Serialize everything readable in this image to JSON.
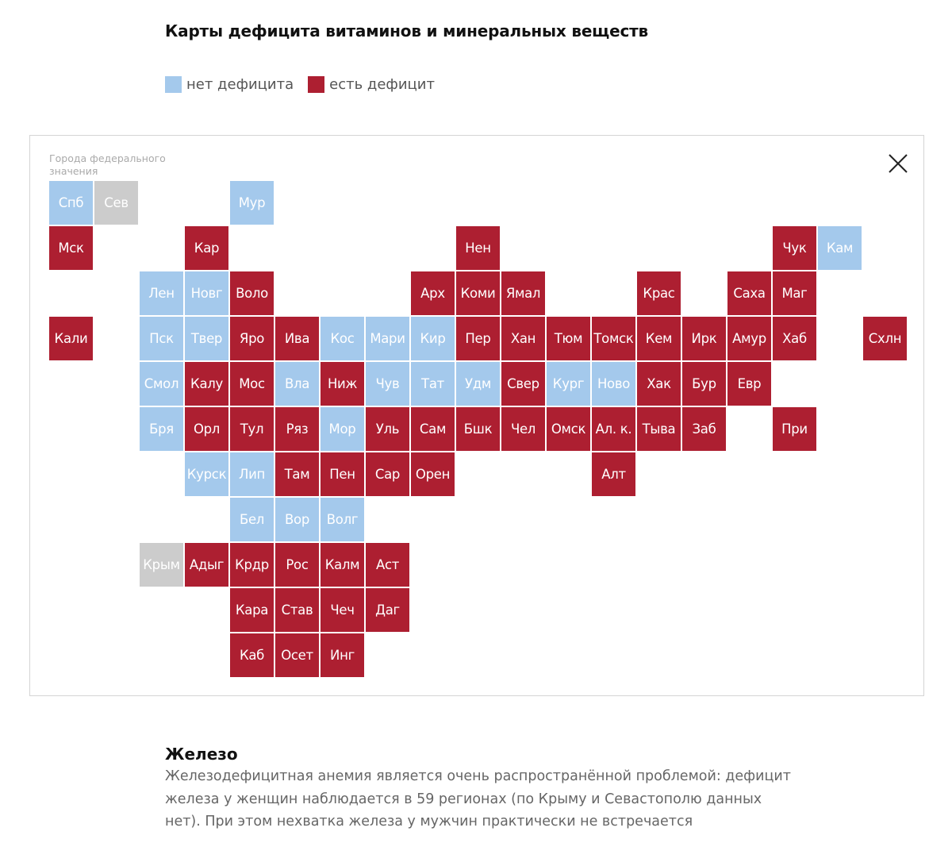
{
  "header": {
    "title": "Карты дефицита витаминов и минеральных веществ"
  },
  "legend": {
    "no_deficit": {
      "label": "нет дефицита",
      "color": "#a4c9ec"
    },
    "deficit": {
      "label": "есть дефицит",
      "color": "#ad1f31"
    }
  },
  "map": {
    "fed_caption": "Города федерального значения",
    "no_data_color": "#cccccc",
    "regions": [
      {
        "label": "Спб",
        "status": "none",
        "row": 0,
        "col": 0
      },
      {
        "label": "Сев",
        "status": "nodata",
        "row": 0,
        "col": 1
      },
      {
        "label": "Мур",
        "status": "none",
        "row": 0,
        "col": 4
      },
      {
        "label": "Мск",
        "status": "deficit",
        "row": 1,
        "col": 0
      },
      {
        "label": "Кар",
        "status": "deficit",
        "row": 1,
        "col": 3
      },
      {
        "label": "Нен",
        "status": "deficit",
        "row": 1,
        "col": 9
      },
      {
        "label": "Чук",
        "status": "deficit",
        "row": 1,
        "col": 16
      },
      {
        "label": "Кам",
        "status": "none",
        "row": 1,
        "col": 17
      },
      {
        "label": "Лен",
        "status": "none",
        "row": 2,
        "col": 2
      },
      {
        "label": "Новг",
        "status": "none",
        "row": 2,
        "col": 3
      },
      {
        "label": "Воло",
        "status": "deficit",
        "row": 2,
        "col": 4
      },
      {
        "label": "Арх",
        "status": "deficit",
        "row": 2,
        "col": 8
      },
      {
        "label": "Коми",
        "status": "deficit",
        "row": 2,
        "col": 9
      },
      {
        "label": "Ямал",
        "status": "deficit",
        "row": 2,
        "col": 10
      },
      {
        "label": "Крас",
        "status": "deficit",
        "row": 2,
        "col": 13
      },
      {
        "label": "Саха",
        "status": "deficit",
        "row": 2,
        "col": 15
      },
      {
        "label": "Маг",
        "status": "deficit",
        "row": 2,
        "col": 16
      },
      {
        "label": "Кали",
        "status": "deficit",
        "row": 3,
        "col": 0
      },
      {
        "label": "Пск",
        "status": "none",
        "row": 3,
        "col": 2
      },
      {
        "label": "Твер",
        "status": "none",
        "row": 3,
        "col": 3
      },
      {
        "label": "Яро",
        "status": "deficit",
        "row": 3,
        "col": 4
      },
      {
        "label": "Ива",
        "status": "deficit",
        "row": 3,
        "col": 5
      },
      {
        "label": "Кос",
        "status": "none",
        "row": 3,
        "col": 6
      },
      {
        "label": "Мари",
        "status": "none",
        "row": 3,
        "col": 7
      },
      {
        "label": "Кир",
        "status": "none",
        "row": 3,
        "col": 8
      },
      {
        "label": "Пер",
        "status": "deficit",
        "row": 3,
        "col": 9
      },
      {
        "label": "Хан",
        "status": "deficit",
        "row": 3,
        "col": 10
      },
      {
        "label": "Тюм",
        "status": "deficit",
        "row": 3,
        "col": 11
      },
      {
        "label": "Томск",
        "status": "deficit",
        "row": 3,
        "col": 12
      },
      {
        "label": "Кем",
        "status": "deficit",
        "row": 3,
        "col": 13
      },
      {
        "label": "Ирк",
        "status": "deficit",
        "row": 3,
        "col": 14
      },
      {
        "label": "Амур",
        "status": "deficit",
        "row": 3,
        "col": 15
      },
      {
        "label": "Хаб",
        "status": "deficit",
        "row": 3,
        "col": 16
      },
      {
        "label": "Схлн",
        "status": "deficit",
        "row": 3,
        "col": 18
      },
      {
        "label": "Смол",
        "status": "none",
        "row": 4,
        "col": 2
      },
      {
        "label": "Калу",
        "status": "deficit",
        "row": 4,
        "col": 3
      },
      {
        "label": "Мос",
        "status": "deficit",
        "row": 4,
        "col": 4
      },
      {
        "label": "Вла",
        "status": "none",
        "row": 4,
        "col": 5
      },
      {
        "label": "Ниж",
        "status": "deficit",
        "row": 4,
        "col": 6
      },
      {
        "label": "Чув",
        "status": "none",
        "row": 4,
        "col": 7
      },
      {
        "label": "Тат",
        "status": "none",
        "row": 4,
        "col": 8
      },
      {
        "label": "Удм",
        "status": "none",
        "row": 4,
        "col": 9
      },
      {
        "label": "Свер",
        "status": "deficit",
        "row": 4,
        "col": 10
      },
      {
        "label": "Кург",
        "status": "none",
        "row": 4,
        "col": 11
      },
      {
        "label": "Ново",
        "status": "none",
        "row": 4,
        "col": 12
      },
      {
        "label": "Хак",
        "status": "deficit",
        "row": 4,
        "col": 13
      },
      {
        "label": "Бур",
        "status": "deficit",
        "row": 4,
        "col": 14
      },
      {
        "label": "Евр",
        "status": "deficit",
        "row": 4,
        "col": 15
      },
      {
        "label": "Бря",
        "status": "none",
        "row": 5,
        "col": 2
      },
      {
        "label": "Орл",
        "status": "deficit",
        "row": 5,
        "col": 3
      },
      {
        "label": "Тул",
        "status": "deficit",
        "row": 5,
        "col": 4
      },
      {
        "label": "Ряз",
        "status": "deficit",
        "row": 5,
        "col": 5
      },
      {
        "label": "Мор",
        "status": "none",
        "row": 5,
        "col": 6
      },
      {
        "label": "Уль",
        "status": "deficit",
        "row": 5,
        "col": 7
      },
      {
        "label": "Сам",
        "status": "deficit",
        "row": 5,
        "col": 8
      },
      {
        "label": "Бшк",
        "status": "deficit",
        "row": 5,
        "col": 9
      },
      {
        "label": "Чел",
        "status": "deficit",
        "row": 5,
        "col": 10
      },
      {
        "label": "Омск",
        "status": "deficit",
        "row": 5,
        "col": 11
      },
      {
        "label": "Ал. к.",
        "status": "deficit",
        "row": 5,
        "col": 12
      },
      {
        "label": "Тыва",
        "status": "deficit",
        "row": 5,
        "col": 13
      },
      {
        "label": "Заб",
        "status": "deficit",
        "row": 5,
        "col": 14
      },
      {
        "label": "При",
        "status": "deficit",
        "row": 5,
        "col": 16
      },
      {
        "label": "Курск",
        "status": "none",
        "row": 6,
        "col": 3
      },
      {
        "label": "Лип",
        "status": "none",
        "row": 6,
        "col": 4
      },
      {
        "label": "Там",
        "status": "deficit",
        "row": 6,
        "col": 5
      },
      {
        "label": "Пен",
        "status": "deficit",
        "row": 6,
        "col": 6
      },
      {
        "label": "Сар",
        "status": "deficit",
        "row": 6,
        "col": 7
      },
      {
        "label": "Орен",
        "status": "deficit",
        "row": 6,
        "col": 8
      },
      {
        "label": "Алт",
        "status": "deficit",
        "row": 6,
        "col": 12
      },
      {
        "label": "Бел",
        "status": "none",
        "row": 7,
        "col": 4
      },
      {
        "label": "Вор",
        "status": "none",
        "row": 7,
        "col": 5
      },
      {
        "label": "Волг",
        "status": "none",
        "row": 7,
        "col": 6
      },
      {
        "label": "Крым",
        "status": "nodata",
        "row": 8,
        "col": 2
      },
      {
        "label": "Адыг",
        "status": "deficit",
        "row": 8,
        "col": 3
      },
      {
        "label": "Крдр",
        "status": "deficit",
        "row": 8,
        "col": 4
      },
      {
        "label": "Рос",
        "status": "deficit",
        "row": 8,
        "col": 5
      },
      {
        "label": "Калм",
        "status": "deficit",
        "row": 8,
        "col": 6
      },
      {
        "label": "Аст",
        "status": "deficit",
        "row": 8,
        "col": 7
      },
      {
        "label": "Кара",
        "status": "deficit",
        "row": 9,
        "col": 4
      },
      {
        "label": "Став",
        "status": "deficit",
        "row": 9,
        "col": 5
      },
      {
        "label": "Чеч",
        "status": "deficit",
        "row": 9,
        "col": 6
      },
      {
        "label": "Даг",
        "status": "deficit",
        "row": 9,
        "col": 7
      },
      {
        "label": "Каб",
        "status": "deficit",
        "row": 10,
        "col": 4
      },
      {
        "label": "Осет",
        "status": "deficit",
        "row": 10,
        "col": 5
      },
      {
        "label": "Инг",
        "status": "deficit",
        "row": 10,
        "col": 6
      }
    ]
  },
  "section": {
    "title": "Железо",
    "text": "Железодефицитная анемия является очень распространённой проблемой: дефицит железа у женщин наблюдается в 59 регионах (по Крыму и Севастополю данных нет). При этом нехватка железа у мужчин практически не встречается"
  }
}
